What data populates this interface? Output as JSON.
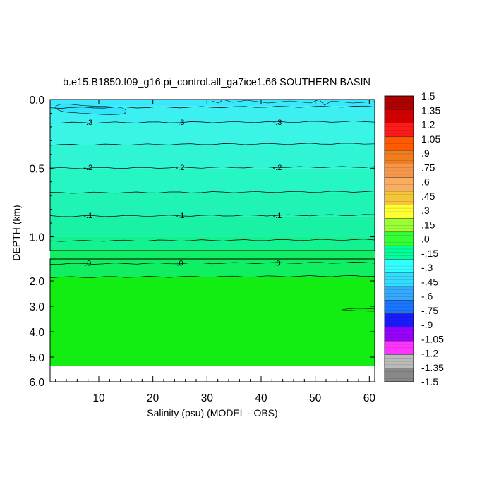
{
  "chart_data": {
    "type": "heatmap",
    "title": "b.e15.B1850.f09_g16.pi_control.all_ga7ice1.66 SOUTHERN BASIN",
    "xlabel": "Salinity (psu) (MODEL - OBS)",
    "ylabel": "DEPTH (km)",
    "xlim": [
      1,
      61
    ],
    "x_ticks": [
      "10",
      "20",
      "30",
      "40",
      "50",
      "60"
    ],
    "top_panel": {
      "ylim": [
        0.0,
        1.1
      ],
      "y_ticks": [
        {
          "value": 0.0,
          "label": "0.0"
        },
        {
          "value": 0.5,
          "label": "0.5"
        },
        {
          "value": 1.0,
          "label": "1.0"
        }
      ]
    },
    "bottom_panel": {
      "ylim": [
        1.1,
        6.0
      ],
      "y_ticks": [
        {
          "value": 2.0,
          "label": "2.0"
        },
        {
          "value": 3.0,
          "label": "3.0"
        },
        {
          "value": 4.0,
          "label": "4.0"
        },
        {
          "value": 5.0,
          "label": "5.0"
        },
        {
          "value": 6.0,
          "label": "6.0"
        }
      ],
      "data_bottom": 5.35
    },
    "colorbar": {
      "levels": [
        1.5,
        1.35,
        1.2,
        1.05,
        0.9,
        0.75,
        0.6,
        0.45,
        0.3,
        0.15,
        0.0,
        -0.15,
        -0.3,
        -0.45,
        -0.6,
        -0.75,
        -0.9,
        -1.05,
        -1.2,
        -1.35,
        -1.5
      ],
      "labels": [
        "1.5",
        "1.35",
        "1.2",
        "1.05",
        ".9",
        ".75",
        ".6",
        ".45",
        ".3",
        ".15",
        ".0",
        "-.15",
        "-.3",
        "-.45",
        "-.6",
        "-.75",
        "-.9",
        "-1.05",
        "-1.2",
        "-1.35",
        "-1.5"
      ],
      "colors": [
        "#b00000",
        "#d40000",
        "#ff1a1a",
        "#ff5a00",
        "#f07d1e",
        "#f5964b",
        "#f8ad61",
        "#f5c63a",
        "#ffff33",
        "#99ff33",
        "#33ff33",
        "#00ff99",
        "#33ffff",
        "#33ddff",
        "#33aaff",
        "#1a75ff",
        "#1a1aff",
        "#9900ff",
        "#ff33ff",
        "#bbbbbb",
        "#888888"
      ]
    },
    "fill_bands": [
      {
        "depth": [
          0.0,
          0.05
        ],
        "color": "#38e8fc"
      },
      {
        "depth": [
          0.05,
          0.17
        ],
        "color": "#3cf0f2"
      },
      {
        "depth": [
          0.17,
          0.33
        ],
        "color": "#3af5e6"
      },
      {
        "depth": [
          0.33,
          0.5
        ],
        "color": "#30f5d4"
      },
      {
        "depth": [
          0.5,
          0.68
        ],
        "color": "#26f5c4"
      },
      {
        "depth": [
          0.68,
          0.85
        ],
        "color": "#20f4b5"
      },
      {
        "depth": [
          0.85,
          1.0
        ],
        "color": "#19f2a4"
      },
      {
        "depth": [
          1.0,
          1.1
        ],
        "color": "#14f190"
      },
      {
        "depth": [
          1.1,
          1.85
        ],
        "color": "#10ef62"
      },
      {
        "depth": [
          1.85,
          5.35
        ],
        "color": "#12ed12"
      }
    ],
    "contours": [
      {
        "depth": 0.06,
        "label": ""
      },
      {
        "depth": 0.17,
        "label": "-.3"
      },
      {
        "depth": 0.33,
        "label": ""
      },
      {
        "depth": 0.5,
        "label": "-.2"
      },
      {
        "depth": 0.68,
        "label": ""
      },
      {
        "depth": 0.85,
        "label": "-.1"
      },
      {
        "depth": 1.03,
        "label": ""
      },
      {
        "depth": 1.3,
        "label": ".0"
      },
      {
        "depth": 1.85,
        "label": ""
      }
    ],
    "contour_label_x": [
      8,
      25,
      43
    ]
  }
}
